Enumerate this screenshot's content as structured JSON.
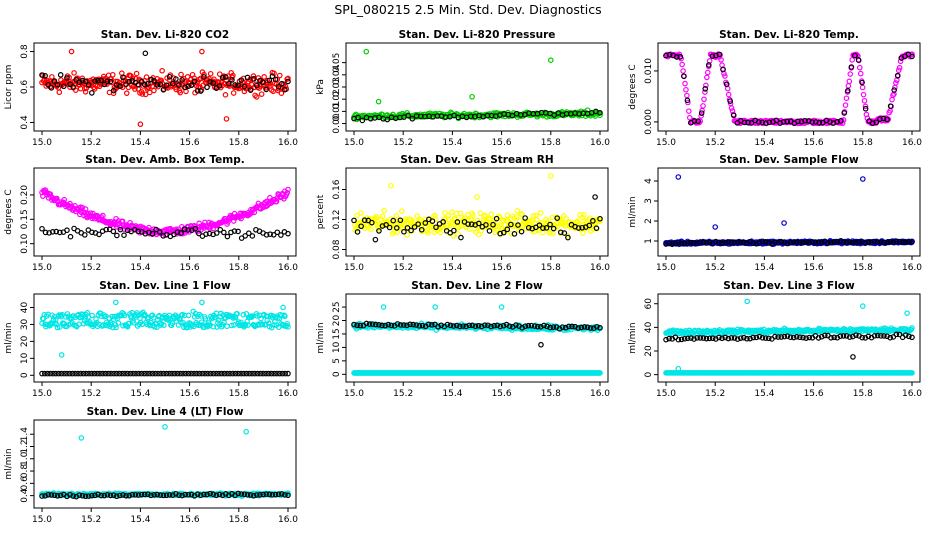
{
  "title": "SPL_080215  2.5 Min. Std. Dev. Diagnostics",
  "chart_data": [
    {
      "type": "scatter",
      "title": "Stan. Dev. Li-820 CO2",
      "ylabel": "Licor ppm",
      "xlim": [
        15.0,
        16.0
      ],
      "ylim": [
        0.38,
        0.82
      ],
      "xticks": [
        "15.0",
        "15.2",
        "15.4",
        "15.6",
        "15.8",
        "16.0"
      ],
      "yticks": [
        "0.4",
        "0.6",
        "0.8"
      ],
      "series": [
        {
          "name": "primary",
          "color": "#ff0000",
          "pattern": "band",
          "center": [
            0.62,
            0.62
          ],
          "spread": 0.08,
          "n": 300,
          "outliers": [
            [
              15.12,
              0.8
            ],
            [
              15.4,
              0.39
            ],
            [
              15.65,
              0.8
            ],
            [
              15.75,
              0.42
            ]
          ]
        },
        {
          "name": "secondary",
          "color": "#000000",
          "pattern": "band",
          "center": [
            0.62,
            0.62
          ],
          "spread": 0.07,
          "n": 80,
          "outliers": [
            [
              15.42,
              0.79
            ]
          ]
        }
      ]
    },
    {
      "type": "scatter",
      "title": "Stan. Dev. Li-820 Pressure",
      "ylabel": "kPa",
      "xlim": [
        15.0,
        16.0
      ],
      "ylim": [
        -0.002,
        0.062
      ],
      "xticks": [
        "15.0",
        "15.2",
        "15.4",
        "15.6",
        "15.8",
        "16.0"
      ],
      "yticks": [
        "0.00",
        "0.01",
        "0.02",
        "0.03",
        "0.04",
        "0.05"
      ],
      "series": [
        {
          "name": "primary",
          "color": "#00cc00",
          "pattern": "band",
          "center": [
            0.006,
            0.008
          ],
          "spread": 0.003,
          "n": 260,
          "outliers": [
            [
              15.05,
              0.059
            ],
            [
              15.1,
              0.018
            ],
            [
              15.48,
              0.022
            ],
            [
              15.8,
              0.052
            ],
            [
              15.95,
              0.011
            ]
          ]
        },
        {
          "name": "secondary",
          "color": "#000000",
          "pattern": "band",
          "center": [
            0.004,
            0.009
          ],
          "spread": 0.002,
          "n": 60,
          "outliers": []
        }
      ]
    },
    {
      "type": "scatter",
      "title": "Stan. Dev. Li-820 Temp.",
      "ylabel": "degrees C",
      "xlim": [
        15.0,
        16.0
      ],
      "ylim": [
        -0.0008,
        0.0145
      ],
      "xticks": [
        "15.0",
        "15.2",
        "15.4",
        "15.6",
        "15.8",
        "16.0"
      ],
      "yticks": [
        "0.000",
        "0.010"
      ],
      "series": [
        {
          "name": "primary",
          "color": "#ff00ff",
          "pattern": "steps",
          "n": 260,
          "outliers": []
        },
        {
          "name": "secondary",
          "color": "#000000",
          "pattern": "steps",
          "n": 70,
          "outliers": []
        }
      ]
    },
    {
      "type": "scatter",
      "title": "Stan. Dev. Amb. Box Temp.",
      "ylabel": "degrees C",
      "xlim": [
        15.0,
        16.0
      ],
      "ylim": [
        0.085,
        0.245
      ],
      "xticks": [
        "15.0",
        "15.2",
        "15.4",
        "15.6",
        "15.8",
        "16.0"
      ],
      "yticks": [
        "0.10",
        "0.15",
        "0.20"
      ],
      "series": [
        {
          "name": "primary",
          "color": "#ff00ff",
          "pattern": "ushape",
          "center": [
            0.2,
            0.125
          ],
          "spread": 0.013,
          "n": 300,
          "outliers": []
        },
        {
          "name": "secondary",
          "color": "#000000",
          "pattern": "band",
          "center": [
            0.125,
            0.12
          ],
          "spread": 0.012,
          "n": 70,
          "outliers": []
        }
      ]
    },
    {
      "type": "scatter",
      "title": "Stan. Dev. Gas Stream RH",
      "ylabel": "percent",
      "xlim": [
        15.0,
        16.0
      ],
      "ylim": [
        0.078,
        0.182
      ],
      "xticks": [
        "15.0",
        "15.2",
        "15.4",
        "15.6",
        "15.8",
        "16.0"
      ],
      "yticks": [
        "0.08",
        "0.12",
        "0.16"
      ],
      "series": [
        {
          "name": "primary",
          "color": "#ffff00",
          "pattern": "band",
          "center": [
            0.115,
            0.115
          ],
          "spread": 0.02,
          "n": 320,
          "outliers": [
            [
              15.15,
              0.165
            ],
            [
              15.5,
              0.15
            ],
            [
              15.8,
              0.178
            ]
          ]
        },
        {
          "name": "secondary",
          "color": "#000000",
          "pattern": "band",
          "center": [
            0.11,
            0.11
          ],
          "spread": 0.02,
          "n": 70,
          "outliers": [
            [
              15.98,
              0.15
            ]
          ]
        }
      ]
    },
    {
      "type": "scatter",
      "title": "Stan. Dev. Sample Flow",
      "ylabel": "ml/min",
      "xlim": [
        15.0,
        16.0
      ],
      "ylim": [
        0.5,
        4.4
      ],
      "xticks": [
        "15.0",
        "15.2",
        "15.4",
        "15.6",
        "15.8",
        "16.0"
      ],
      "yticks": [
        "1",
        "2",
        "3",
        "4"
      ],
      "series": [
        {
          "name": "primary",
          "color": "#0000cc",
          "pattern": "band",
          "center": [
            0.9,
            0.95
          ],
          "spread": 0.1,
          "n": 320,
          "outliers": [
            [
              15.05,
              4.2
            ],
            [
              15.2,
              1.7
            ],
            [
              15.48,
              1.9
            ],
            [
              15.8,
              4.1
            ]
          ]
        },
        {
          "name": "secondary",
          "color": "#000000",
          "pattern": "band",
          "center": [
            0.9,
            0.95
          ],
          "spread": 0.08,
          "n": 80,
          "outliers": []
        }
      ]
    },
    {
      "type": "scatter",
      "title": "Stan. Dev. Line 1 Flow",
      "ylabel": "ml/min",
      "xlim": [
        15.0,
        16.0
      ],
      "ylim": [
        -1,
        45
      ],
      "xticks": [
        "15.0",
        "15.2",
        "15.4",
        "15.6",
        "15.8",
        "16.0"
      ],
      "yticks": [
        "0",
        "10",
        "20",
        "30",
        "40"
      ],
      "series": [
        {
          "name": "primary",
          "color": "#00e5e5",
          "pattern": "twobands",
          "center": [
            33,
            32
          ],
          "spread": 3,
          "n": 320,
          "outliers": [
            [
              15.08,
              12
            ],
            [
              15.3,
              43
            ],
            [
              15.65,
              43
            ],
            [
              15.98,
              40
            ]
          ]
        },
        {
          "name": "secondary",
          "color": "#000000",
          "pattern": "flat",
          "center": [
            1,
            1
          ],
          "spread": 0,
          "n": 90,
          "outliers": []
        }
      ]
    },
    {
      "type": "scatter",
      "title": "Stan. Dev. Line 2 Flow",
      "ylabel": "ml/min",
      "xlim": [
        15.0,
        16.0
      ],
      "ylim": [
        -1,
        28
      ],
      "xticks": [
        "15.0",
        "15.2",
        "15.4",
        "15.6",
        "15.8",
        "16.0"
      ],
      "yticks": [
        "0",
        "5",
        "10",
        "15",
        "20",
        "25"
      ],
      "series": [
        {
          "name": "primary",
          "color": "#00e5e5",
          "pattern": "band",
          "center": [
            18,
            17
          ],
          "spread": 1.3,
          "n": 300,
          "outliers": [
            [
              15.12,
              25
            ],
            [
              15.33,
              25
            ],
            [
              15.6,
              25
            ]
          ],
          "flatline": 0.5
        },
        {
          "name": "secondary",
          "color": "#000000",
          "pattern": "band",
          "center": [
            18.5,
            17.5
          ],
          "spread": 0.8,
          "n": 80,
          "outliers": [
            [
              15.76,
              11
            ]
          ]
        }
      ]
    },
    {
      "type": "scatter",
      "title": "Stan. Dev. Line 3 Flow",
      "ylabel": "ml/min",
      "xlim": [
        15.0,
        16.0
      ],
      "ylim": [
        -2,
        64
      ],
      "xticks": [
        "15.0",
        "15.2",
        "15.4",
        "15.6",
        "15.8",
        "16.0"
      ],
      "yticks": [
        "0",
        "20",
        "40",
        "60"
      ],
      "series": [
        {
          "name": "primary",
          "color": "#00e5e5",
          "pattern": "band",
          "center": [
            36,
            38
          ],
          "spread": 2.5,
          "n": 300,
          "outliers": [
            [
              15.05,
              5
            ],
            [
              15.33,
              62
            ],
            [
              15.8,
              58
            ],
            [
              15.98,
              52
            ]
          ],
          "flatline": 1.5
        },
        {
          "name": "secondary",
          "color": "#000000",
          "pattern": "band",
          "center": [
            30,
            33
          ],
          "spread": 2,
          "n": 80,
          "outliers": [
            [
              15.76,
              15
            ]
          ]
        }
      ]
    },
    {
      "type": "scatter",
      "title": "Stan. Dev. Line 4 (LT) Flow",
      "ylabel": "ml/min",
      "xlim": [
        15.0,
        16.0
      ],
      "ylim": [
        0.28,
        1.55
      ],
      "xticks": [
        "15.0",
        "15.2",
        "15.4",
        "15.6",
        "15.8",
        "16.0"
      ],
      "yticks": [
        "0.4",
        "0.6",
        "0.8",
        "1.0",
        "1.2",
        "1.4"
      ],
      "series": [
        {
          "name": "primary",
          "color": "#00e5e5",
          "pattern": "band",
          "center": [
            0.42,
            0.42
          ],
          "spread": 0.03,
          "n": 300,
          "outliers": [
            [
              15.16,
              1.34
            ],
            [
              15.5,
              1.52
            ],
            [
              15.83,
              1.44
            ]
          ]
        },
        {
          "name": "secondary",
          "color": "#000000",
          "pattern": "band",
          "center": [
            0.4,
            0.42
          ],
          "spread": 0.025,
          "n": 80,
          "outliers": []
        }
      ]
    }
  ]
}
